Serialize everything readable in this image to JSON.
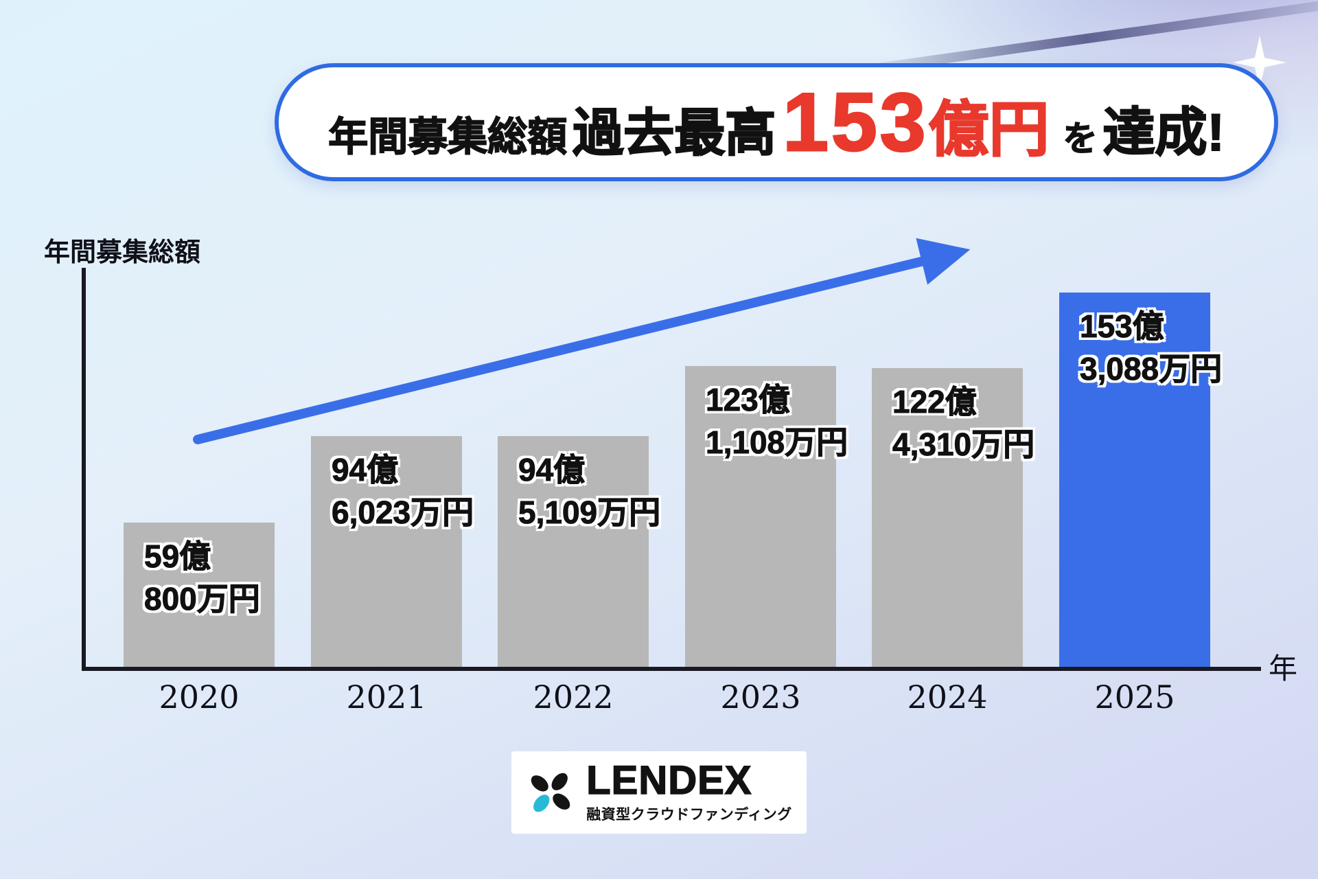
{
  "banner": {
    "part1": "年間募集総額",
    "part2": "過去最高",
    "highlight_value": "153",
    "highlight_unit": "億円",
    "particle": "を",
    "part3": "達成!"
  },
  "chart_data": {
    "type": "bar",
    "title": "年間募集総額 過去最高153億円を達成!",
    "ylabel": "年間募集総額",
    "xlabel": "年",
    "unit": "億円",
    "categories": [
      "2020",
      "2021",
      "2022",
      "2023",
      "2024",
      "2025"
    ],
    "values": [
      59.08,
      94.6023,
      94.5109,
      123.1108,
      122.431,
      153.3088
    ],
    "bar_value_labels": [
      [
        "59億",
        "800万円"
      ],
      [
        "94億",
        "6,023万円"
      ],
      [
        "94億",
        "5,109万円"
      ],
      [
        "123億",
        "1,108万円"
      ],
      [
        "122億",
        "4,310万円"
      ],
      [
        "153億",
        "3,088万円"
      ]
    ],
    "highlight_index": 5,
    "bar_color": "#b7b7b7",
    "highlight_color": "#3a6ee8",
    "arrow_color": "#3a6ee8",
    "ylim": [
      0,
      160
    ],
    "grid": false,
    "legend_position": "none"
  },
  "logo": {
    "wordmark": "LENDEX",
    "tagline": "融資型クラウドファンディング"
  }
}
